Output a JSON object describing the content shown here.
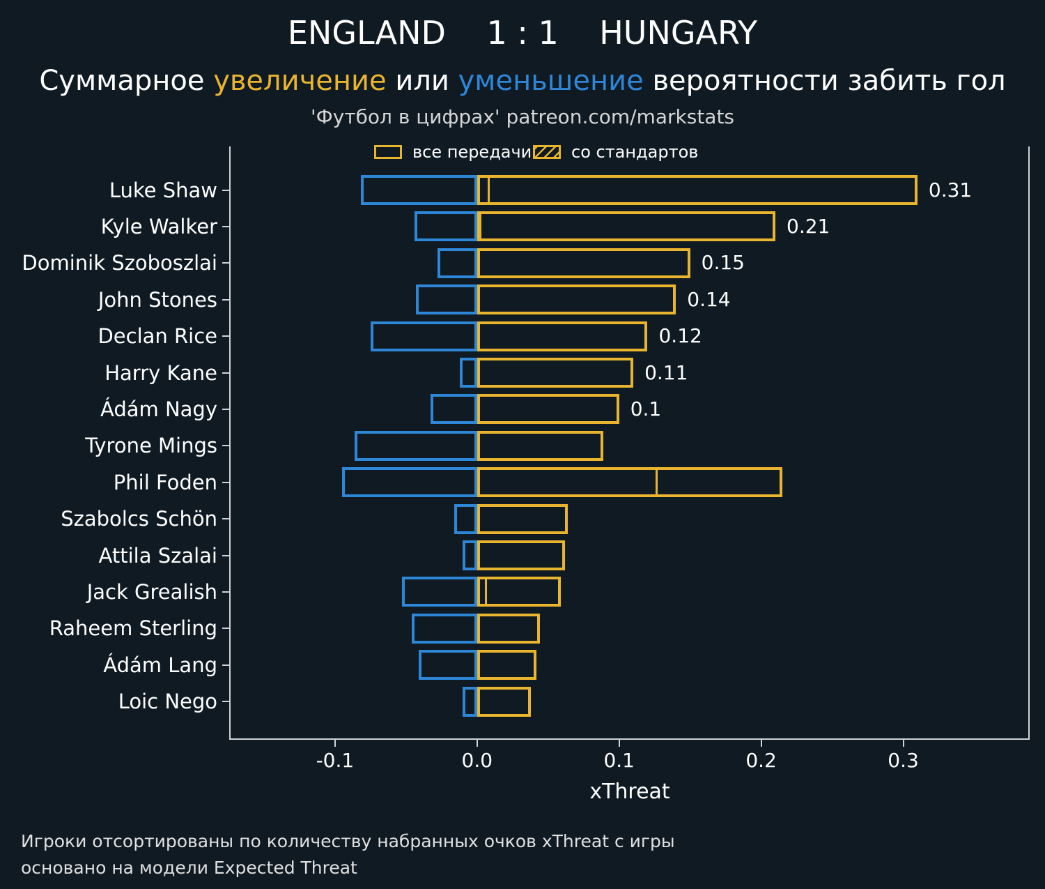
{
  "header": {
    "title": "ENGLAND    1 : 1    HUNGARY",
    "subtitle": {
      "part1": "Суммарное ",
      "increase": "увеличение",
      "part2": " или ",
      "decrease": "уменьшение",
      "part3": " вероятности забить гол"
    },
    "credit": "'Футбол в цифрах' patreon.com/markstats"
  },
  "legend": {
    "all_passes": "все передачи",
    "set_pieces": "со стандартов"
  },
  "footer": {
    "line1": "Игроки отсортированы по количеству набранных очков xThreat с игры",
    "line2": "основано на модели Expected Threat"
  },
  "colors": {
    "increase_yellow": "#e9b42e",
    "decrease_blue": "#2e86d6",
    "background": "#0f1a23",
    "axis": "#cfd3d7"
  },
  "chart_data": {
    "type": "bar",
    "orientation": "horizontal",
    "title": "ENGLAND    1 : 1    HUNGARY",
    "subtitle": "Суммарное увеличение или уменьшение вероятности забить гол",
    "xlabel": "xThreat",
    "xlim": [
      -0.174,
      0.389
    ],
    "x_ticks": [
      -0.1,
      0.0,
      0.1,
      0.2,
      0.3
    ],
    "grid": false,
    "legend_position": "upper center",
    "players": [
      {
        "name": "Luke Shaw",
        "all_passes_positive": 0.31,
        "negative": -0.082,
        "set_pieces": 0.009,
        "value_label": "0.31"
      },
      {
        "name": "Kyle Walker",
        "all_passes_positive": 0.21,
        "negative": -0.044,
        "set_pieces": 0.002,
        "value_label": "0.21"
      },
      {
        "name": "Dominik Szoboszlai",
        "all_passes_positive": 0.15,
        "negative": -0.028,
        "set_pieces": 0,
        "value_label": "0.15"
      },
      {
        "name": "John Stones",
        "all_passes_positive": 0.14,
        "negative": -0.043,
        "set_pieces": 0,
        "value_label": "0.14"
      },
      {
        "name": "Declan Rice",
        "all_passes_positive": 0.12,
        "negative": -0.075,
        "set_pieces": 0,
        "value_label": "0.12"
      },
      {
        "name": "Harry Kane",
        "all_passes_positive": 0.11,
        "negative": -0.012,
        "set_pieces": 0,
        "value_label": "0.11"
      },
      {
        "name": "Ádám Nagy",
        "all_passes_positive": 0.1,
        "negative": -0.033,
        "set_pieces": 0,
        "value_label": "0.1"
      },
      {
        "name": "Tyrone Mings",
        "all_passes_positive": 0.089,
        "negative": -0.086,
        "set_pieces": 0,
        "value_label": null
      },
      {
        "name": "Phil Foden",
        "all_passes_positive": 0.215,
        "negative": -0.095,
        "set_pieces": 0.127,
        "value_label": null
      },
      {
        "name": "Szabolcs Schön",
        "all_passes_positive": 0.064,
        "negative": -0.016,
        "set_pieces": 0,
        "value_label": null
      },
      {
        "name": "Attila Szalai",
        "all_passes_positive": 0.062,
        "negative": -0.01,
        "set_pieces": 0,
        "value_label": null
      },
      {
        "name": "Jack Grealish",
        "all_passes_positive": 0.059,
        "negative": -0.053,
        "set_pieces": 0.007,
        "value_label": null
      },
      {
        "name": "Raheem Sterling",
        "all_passes_positive": 0.044,
        "negative": -0.046,
        "set_pieces": 0,
        "value_label": null
      },
      {
        "name": "Ádám Lang",
        "all_passes_positive": 0.042,
        "negative": -0.041,
        "set_pieces": 0,
        "value_label": null
      },
      {
        "name": "Loic Nego",
        "all_passes_positive": 0.038,
        "negative": -0.01,
        "set_pieces": 0,
        "value_label": null
      }
    ]
  }
}
